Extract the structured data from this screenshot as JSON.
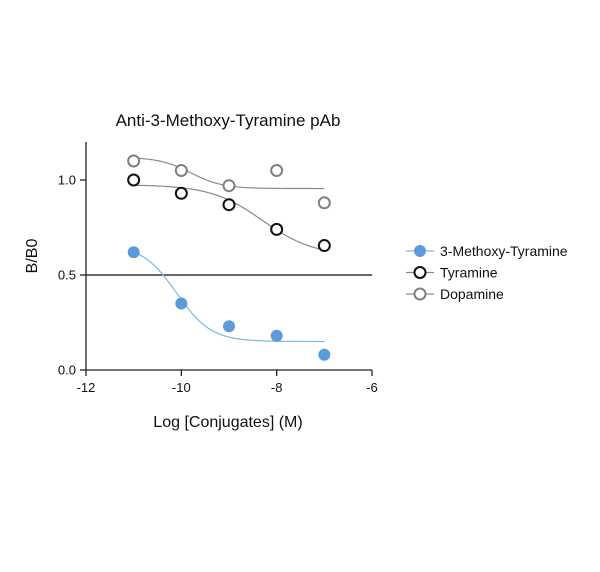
{
  "chart_data": {
    "type": "scatter",
    "title": "Anti-3-Methoxy-Tyramine pAb",
    "xlabel": "Log [Conjugates] (M)",
    "ylabel": "B/B0",
    "xlim": [
      -12,
      -6
    ],
    "ylim": [
      0.0,
      1.2
    ],
    "x_ticks": [
      -12,
      -10,
      -8,
      -6
    ],
    "x_tick_labels": [
      "-12",
      "-10",
      "-8",
      "-6"
    ],
    "y_ticks": [
      0.0,
      0.5,
      1.0
    ],
    "y_tick_labels": [
      "0.0",
      "0.5",
      "1.0"
    ],
    "reference_line_y": 0.5,
    "grid": false,
    "legend_position": "right",
    "series": [
      {
        "name": "3-Methoxy-Tyramine",
        "marker": "filled-circle",
        "color": "#5b9bd9",
        "curve_color": "#7fb8e4",
        "x": [
          -11,
          -10,
          -9,
          -8,
          -7
        ],
        "y": [
          0.62,
          0.35,
          0.23,
          0.18,
          0.08
        ],
        "fit": {
          "top": 0.66,
          "bottom": 0.15,
          "log_ic50": -10.1,
          "hill": 1.2
        }
      },
      {
        "name": "Tyramine",
        "marker": "open-circle",
        "color": "#111111",
        "curve_color": "#8a8a8a",
        "x": [
          -11,
          -10,
          -9,
          -8,
          -7
        ],
        "y": [
          1.0,
          0.93,
          0.87,
          0.74,
          0.655
        ],
        "fit": {
          "top": 0.975,
          "bottom": 0.6,
          "log_ic50": -8.3,
          "hill": 0.8
        }
      },
      {
        "name": "Dopamine",
        "marker": "open-circle",
        "color": "#808080",
        "curve_color": "#8a8a8a",
        "x": [
          -11,
          -10,
          -9,
          -8,
          -7
        ],
        "y": [
          1.1,
          1.05,
          0.97,
          1.05,
          0.88
        ],
        "fit": {
          "top": 1.12,
          "bottom": 0.955,
          "log_ic50": -9.8,
          "hill": 1.3
        }
      }
    ]
  }
}
